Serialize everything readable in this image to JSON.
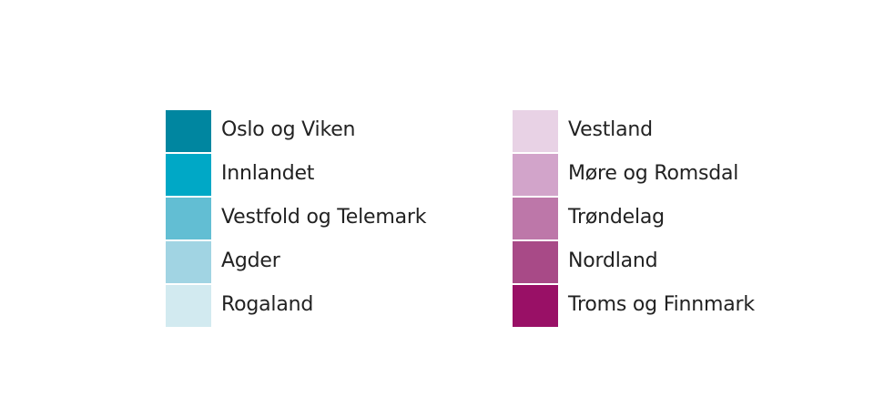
{
  "legend": {
    "left": [
      {
        "label": "Oslo og Viken",
        "color": "#0086A0"
      },
      {
        "label": "Innlandet",
        "color": "#00A8C6"
      },
      {
        "label": "Vestfold og Telemark",
        "color": "#62BED3"
      },
      {
        "label": "Agder",
        "color": "#A1D4E3"
      },
      {
        "label": "Rogaland",
        "color": "#D2EAF0"
      }
    ],
    "right": [
      {
        "label": "Vestland",
        "color": "#E8D2E5"
      },
      {
        "label": "Møre og Romsdal",
        "color": "#D2A4CA"
      },
      {
        "label": "Trøndelag",
        "color": "#BD77A9"
      },
      {
        "label": "Nordland",
        "color": "#A84A87"
      },
      {
        "label": "Troms og Finnmark",
        "color": "#991066"
      }
    ]
  }
}
